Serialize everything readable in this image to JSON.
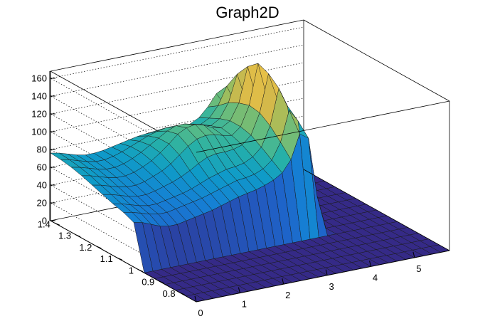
{
  "chart_data": {
    "type": "surface",
    "title": "Graph2D",
    "xlabel": "",
    "ylabel": "",
    "zlabel": "",
    "grid": true,
    "xlim": [
      0,
      5.8
    ],
    "ylim": [
      0.72,
      1.42
    ],
    "zlim": [
      0,
      168
    ],
    "x_ticks": [
      0,
      1,
      2,
      3,
      4,
      5
    ],
    "y_ticks": [
      0.8,
      0.9,
      1,
      1.1,
      1.2,
      1.3,
      1.4
    ],
    "z_ticks": [
      0,
      20,
      40,
      60,
      80,
      100,
      120,
      140,
      160
    ],
    "x_tick_labels": [
      "0",
      "1",
      "2",
      "3",
      "4",
      "5"
    ],
    "y_tick_labels": [
      "0.8",
      "0.9",
      "1",
      "1.1",
      "1.2",
      "1.3",
      "1.4"
    ],
    "z_tick_labels": [
      "0",
      "20",
      "40",
      "60",
      "80",
      "100",
      "120",
      "140",
      "160"
    ],
    "palette": [
      "#352a87",
      "#2c3e9e",
      "#1f62c8",
      "#1580d4",
      "#0f9bc8",
      "#26b0a8",
      "#5cbc84",
      "#9cbd5e",
      "#d4b94a",
      "#f0c445",
      "#f9e325"
    ],
    "surface_x": [
      0,
      0.2,
      0.4,
      0.6,
      0.8,
      1.0,
      1.2,
      1.4,
      1.6,
      1.8,
      2.0,
      2.2,
      2.4,
      2.6,
      2.8,
      3.0,
      3.2,
      3.4,
      3.6,
      3.8,
      4.0,
      4.2,
      4.4,
      4.6,
      4.8,
      5.0,
      5.2,
      5.4,
      5.6,
      5.8
    ],
    "surface_y": [
      0.72,
      0.77,
      0.82,
      0.87,
      0.92,
      0.97,
      1.02,
      1.07,
      1.12,
      1.17,
      1.22,
      1.27,
      1.32,
      1.37,
      1.42
    ],
    "surface_z": [
      [
        0,
        0,
        0,
        0,
        0,
        0,
        0,
        0,
        0,
        0,
        0,
        0,
        0,
        0,
        0,
        0,
        0,
        0,
        0,
        0,
        0,
        0,
        0,
        0,
        0,
        0,
        0,
        0,
        0,
        0
      ],
      [
        0,
        0,
        0,
        0,
        0,
        0,
        0,
        0,
        0,
        0,
        0,
        0,
        0,
        0,
        0,
        0,
        0,
        0,
        0,
        0,
        0,
        0,
        0,
        0,
        0,
        0,
        0,
        0,
        0,
        0
      ],
      [
        0,
        0,
        0,
        0,
        0,
        0,
        0,
        0,
        0,
        0,
        0,
        0,
        0,
        0,
        0,
        0,
        0,
        0,
        0,
        0,
        0,
        0,
        0,
        0,
        0,
        0,
        0,
        0,
        0,
        0
      ],
      [
        0,
        0,
        0,
        0,
        0,
        0,
        0,
        0,
        0,
        0,
        0,
        0,
        0,
        0,
        0,
        0,
        0,
        0,
        0,
        0,
        0,
        0,
        0,
        0,
        0,
        0,
        0,
        0,
        0,
        0
      ],
      [
        0,
        0,
        0,
        0,
        0,
        0,
        0,
        0,
        0,
        0,
        0,
        0,
        0,
        0,
        0,
        0,
        0,
        0,
        0,
        0,
        0,
        0,
        0,
        0,
        0,
        0,
        0,
        0,
        0,
        0
      ],
      [
        0,
        0,
        0,
        0,
        0,
        0,
        0,
        0,
        0,
        0,
        0,
        0,
        0,
        0,
        0,
        0,
        0,
        0,
        0,
        0,
        0,
        0,
        0,
        0,
        0,
        0,
        0,
        0,
        0,
        0
      ],
      [
        50,
        48,
        44,
        40,
        38,
        38,
        40,
        42,
        44,
        46,
        49,
        52,
        55,
        57,
        59,
        62,
        66,
        72,
        85,
        112,
        105,
        38,
        0,
        0,
        0,
        0,
        0,
        0,
        0,
        0
      ],
      [
        55,
        53,
        50,
        47,
        45,
        45,
        47,
        49,
        51,
        53,
        56,
        59,
        62,
        65,
        66,
        68,
        72,
        80,
        98,
        132,
        118,
        42,
        0,
        0,
        0,
        0,
        0,
        0,
        0,
        0
      ],
      [
        58,
        56,
        53,
        50,
        48,
        48,
        50,
        52,
        54,
        57,
        61,
        65,
        68,
        71,
        72,
        74,
        79,
        88,
        110,
        150,
        128,
        45,
        0,
        0,
        0,
        0,
        0,
        0,
        0,
        0
      ],
      [
        62,
        60,
        57,
        54,
        52,
        52,
        54,
        57,
        60,
        64,
        69,
        75,
        80,
        82,
        82,
        83,
        86,
        95,
        118,
        160,
        130,
        48,
        0,
        0,
        0,
        0,
        0,
        0,
        0,
        0
      ],
      [
        66,
        64,
        61,
        58,
        56,
        56,
        58,
        62,
        66,
        72,
        80,
        88,
        94,
        96,
        95,
        92,
        90,
        98,
        120,
        165,
        126,
        46,
        0,
        0,
        0,
        0,
        0,
        0,
        0,
        0
      ],
      [
        70,
        68,
        65,
        62,
        60,
        60,
        62,
        66,
        71,
        78,
        86,
        95,
        100,
        102,
        99,
        94,
        92,
        98,
        116,
        155,
        118,
        44,
        0,
        0,
        0,
        0,
        0,
        0,
        0,
        0
      ],
      [
        73,
        71,
        68,
        65,
        63,
        63,
        65,
        69,
        74,
        80,
        86,
        92,
        96,
        96,
        93,
        89,
        88,
        94,
        110,
        140,
        108,
        42,
        0,
        0,
        0,
        0,
        0,
        0,
        0,
        0
      ],
      [
        75,
        73,
        70,
        67,
        65,
        65,
        67,
        70,
        74,
        78,
        82,
        85,
        87,
        86,
        84,
        82,
        83,
        88,
        100,
        120,
        98,
        40,
        0,
        0,
        0,
        0,
        0,
        0,
        0,
        0
      ],
      [
        76,
        74,
        71,
        68,
        66,
        66,
        67,
        69,
        71,
        73,
        75,
        76,
        77,
        76,
        75,
        75,
        77,
        82,
        92,
        105,
        90,
        38,
        0,
        0,
        0,
        0,
        0,
        0,
        0,
        0
      ]
    ]
  }
}
